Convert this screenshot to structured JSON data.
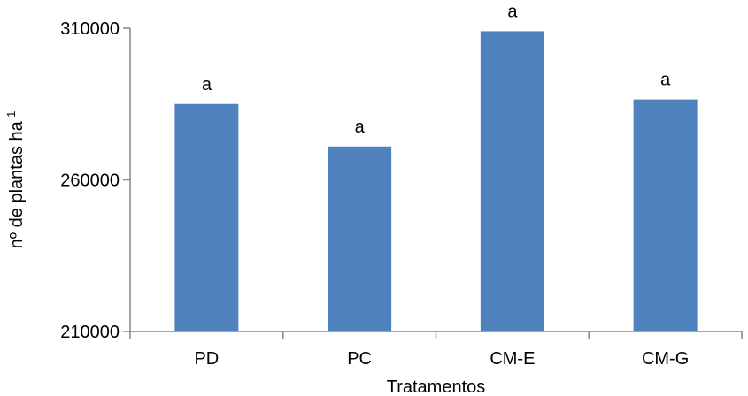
{
  "chart_data": {
    "type": "bar",
    "categories": [
      "PD",
      "PC",
      "CM-E",
      "CM-G"
    ],
    "values": [
      285000,
      271000,
      309000,
      286500
    ],
    "data_labels": [
      "a",
      "a",
      "a",
      "a"
    ],
    "xlabel": "Tratamentos",
    "ylabel_main": "nº de plantas ha",
    "ylabel_sup": "-1",
    "ylim": [
      210000,
      310000
    ],
    "yticks": [
      210000,
      260000,
      310000
    ],
    "ytick_labels": [
      "210000",
      "260000",
      "310000"
    ],
    "bar_color": "#4f81bd",
    "grid": false,
    "legend": "none"
  }
}
